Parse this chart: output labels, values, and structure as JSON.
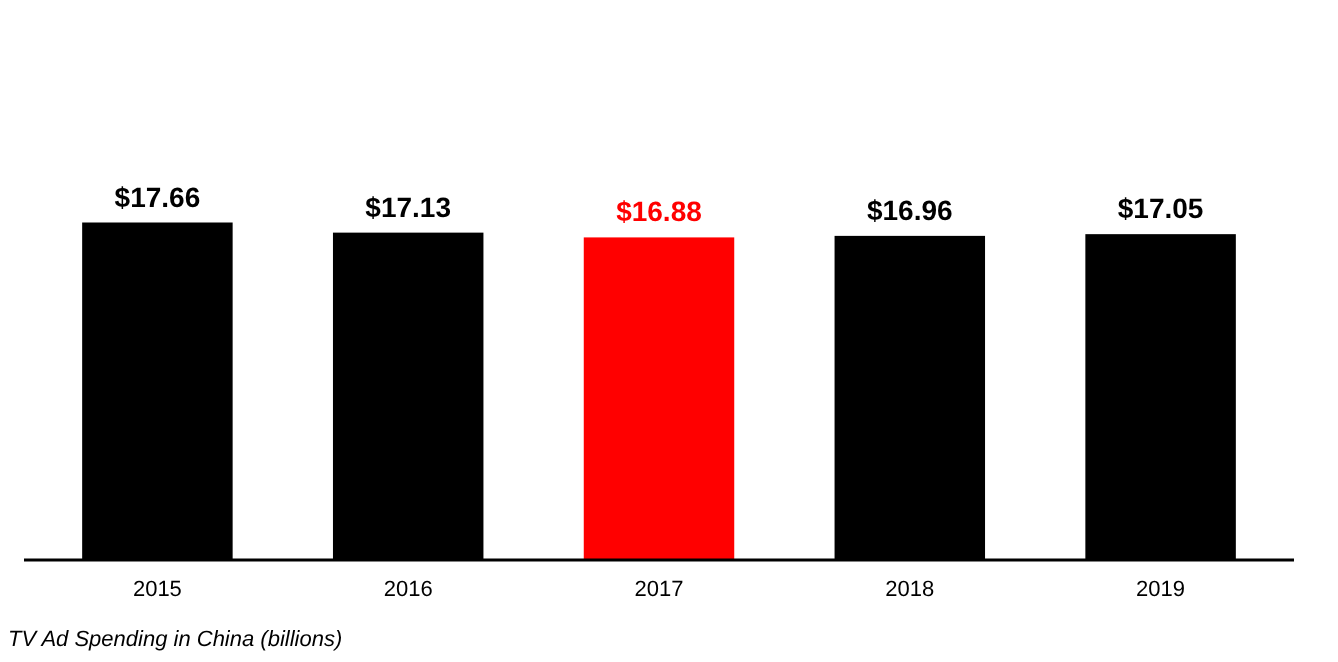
{
  "chart_data": {
    "type": "bar",
    "categories": [
      "2015",
      "2016",
      "2017",
      "2018",
      "2019"
    ],
    "values": [
      17.66,
      17.13,
      16.88,
      16.96,
      17.05
    ],
    "colors": [
      "#000000",
      "#000000",
      "#ff0000",
      "#000000",
      "#000000"
    ],
    "value_labels": [
      "$17.66",
      "$17.13",
      "$16.88",
      "$16.96",
      "$17.05"
    ],
    "annotations": [
      "TV Ad Spending in China (billions)"
    ]
  }
}
